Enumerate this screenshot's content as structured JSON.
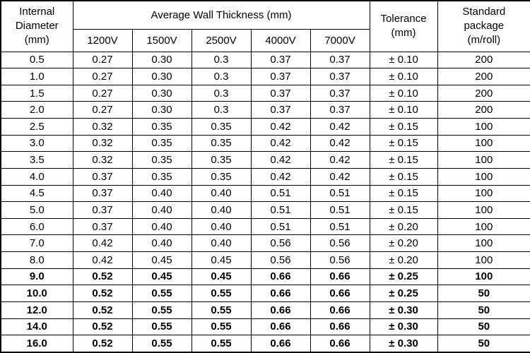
{
  "table": {
    "header": {
      "internal_diameter": "Internal\nDiameter\n(mm)",
      "wall_thickness": "Average Wall Thickness (mm)",
      "voltages": [
        "1200V",
        "1500V",
        "2500V",
        "4000V",
        "7000V"
      ],
      "tolerance": "Tolerance\n(mm)",
      "package": "Standard\npackage\n(m/roll)"
    },
    "rows": [
      {
        "diameter": "0.5",
        "values": [
          "0.27",
          "0.30",
          "0.3",
          "0.37",
          "0.37"
        ],
        "tolerance": "± 0.10",
        "package": "200",
        "bold": false
      },
      {
        "diameter": "1.0",
        "values": [
          "0.27",
          "0.30",
          "0.3",
          "0.37",
          "0.37"
        ],
        "tolerance": "± 0.10",
        "package": "200",
        "bold": false
      },
      {
        "diameter": "1.5",
        "values": [
          "0.27",
          "0.30",
          "0.3",
          "0.37",
          "0.37"
        ],
        "tolerance": "± 0.10",
        "package": "200",
        "bold": false
      },
      {
        "diameter": "2.0",
        "values": [
          "0.27",
          "0.30",
          "0.3",
          "0.37",
          "0.37"
        ],
        "tolerance": "± 0.10",
        "package": "200",
        "bold": false
      },
      {
        "diameter": "2.5",
        "values": [
          "0.32",
          "0.35",
          "0.35",
          "0.42",
          "0.42"
        ],
        "tolerance": "± 0.15",
        "package": "100",
        "bold": false
      },
      {
        "diameter": "3.0",
        "values": [
          "0.32",
          "0.35",
          "0.35",
          "0.42",
          "0.42"
        ],
        "tolerance": "± 0.15",
        "package": "100",
        "bold": false
      },
      {
        "diameter": "3.5",
        "values": [
          "0.32",
          "0.35",
          "0.35",
          "0.42",
          "0.42"
        ],
        "tolerance": "± 0.15",
        "package": "100",
        "bold": false
      },
      {
        "diameter": "4.0",
        "values": [
          "0.37",
          "0.35",
          "0.35",
          "0.42",
          "0.42"
        ],
        "tolerance": "± 0.15",
        "package": "100",
        "bold": false
      },
      {
        "diameter": "4.5",
        "values": [
          "0.37",
          "0.40",
          "0.40",
          "0.51",
          "0.51"
        ],
        "tolerance": "± 0.15",
        "package": "100",
        "bold": false
      },
      {
        "diameter": "5.0",
        "values": [
          "0.37",
          "0.40",
          "0.40",
          "0.51",
          "0.51"
        ],
        "tolerance": "± 0.15",
        "package": "100",
        "bold": false
      },
      {
        "diameter": "6.0",
        "values": [
          "0.37",
          "0.40",
          "0.40",
          "0.51",
          "0.51"
        ],
        "tolerance": "± 0.20",
        "package": "100",
        "bold": false
      },
      {
        "diameter": "7.0",
        "values": [
          "0.42",
          "0.40",
          "0.40",
          "0.56",
          "0.56"
        ],
        "tolerance": "± 0.20",
        "package": "100",
        "bold": false
      },
      {
        "diameter": "8.0",
        "values": [
          "0.42",
          "0.45",
          "0.45",
          "0.56",
          "0.56"
        ],
        "tolerance": "± 0.20",
        "package": "100",
        "bold": false
      },
      {
        "diameter": "9.0",
        "values": [
          "0.52",
          "0.45",
          "0.45",
          "0.66",
          "0.66"
        ],
        "tolerance": "± 0.25",
        "package": "100",
        "bold": true
      },
      {
        "diameter": "10.0",
        "values": [
          "0.52",
          "0.55",
          "0.55",
          "0.66",
          "0.66"
        ],
        "tolerance": "± 0.25",
        "package": "50",
        "bold": true
      },
      {
        "diameter": "12.0",
        "values": [
          "0.52",
          "0.55",
          "0.55",
          "0.66",
          "0.66"
        ],
        "tolerance": "± 0.30",
        "package": "50",
        "bold": true
      },
      {
        "diameter": "14.0",
        "values": [
          "0.52",
          "0.55",
          "0.55",
          "0.66",
          "0.66"
        ],
        "tolerance": "± 0.30",
        "package": "50",
        "bold": true
      },
      {
        "diameter": "16.0",
        "values": [
          "0.52",
          "0.55",
          "0.55",
          "0.66",
          "0.66"
        ],
        "tolerance": "± 0.30",
        "package": "50",
        "bold": true
      }
    ]
  }
}
